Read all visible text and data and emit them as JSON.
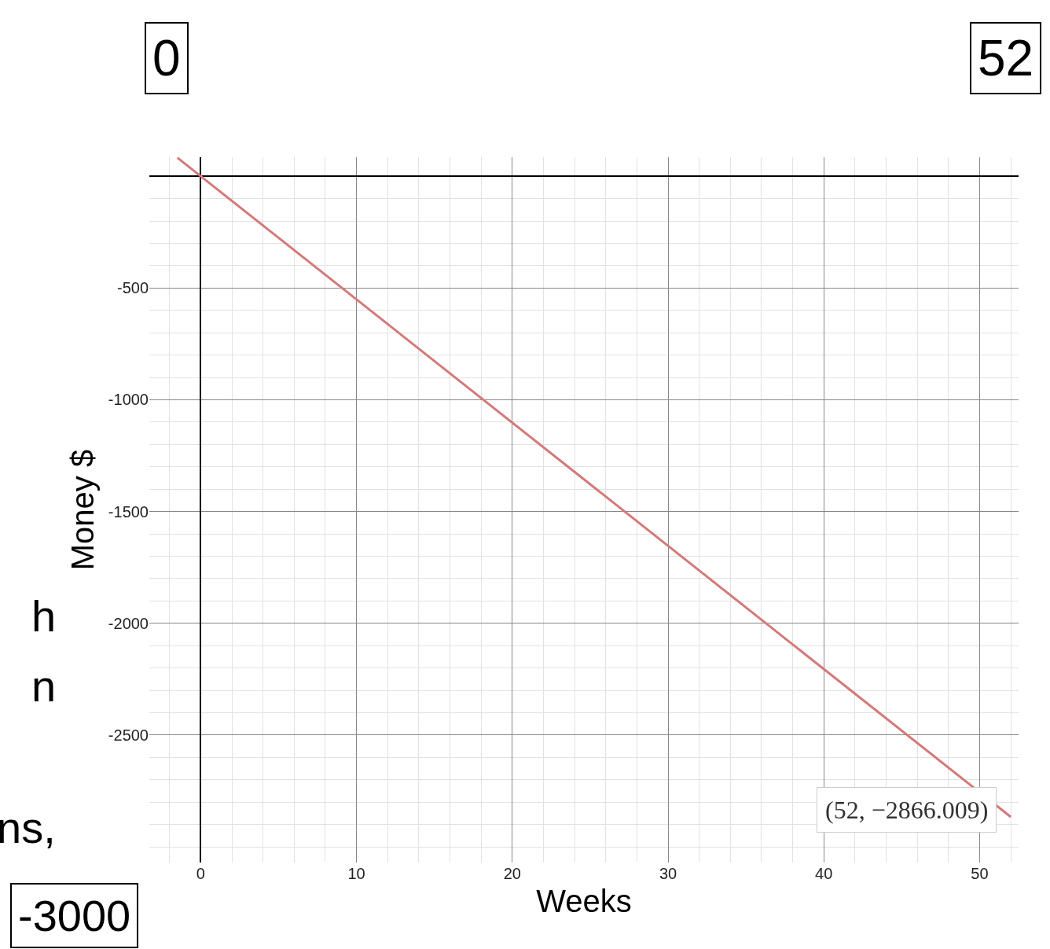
{
  "chart_data": {
    "type": "line",
    "xlabel": "Weeks",
    "ylabel": "Money $",
    "x": [
      -1.5,
      0,
      52
    ],
    "series": [
      {
        "color": "#d47a7a",
        "values": [
          83,
          0,
          -2866.009
        ]
      }
    ],
    "xlim": [
      -3.3,
      52.5
    ],
    "ylim": [
      -3070,
      85
    ],
    "xticks": [
      0,
      10,
      20,
      30,
      40,
      50
    ],
    "yticks": [
      -2500,
      -2000,
      -1500,
      -1000,
      -500
    ],
    "grid": true,
    "marker": "none",
    "line_style": "solid",
    "annotations": [
      {
        "text": "(52, −2866.009)",
        "x": 52,
        "y": -2866.009
      },
      "0",
      "52",
      "-3000",
      "h",
      "n",
      "ns,"
    ]
  }
}
